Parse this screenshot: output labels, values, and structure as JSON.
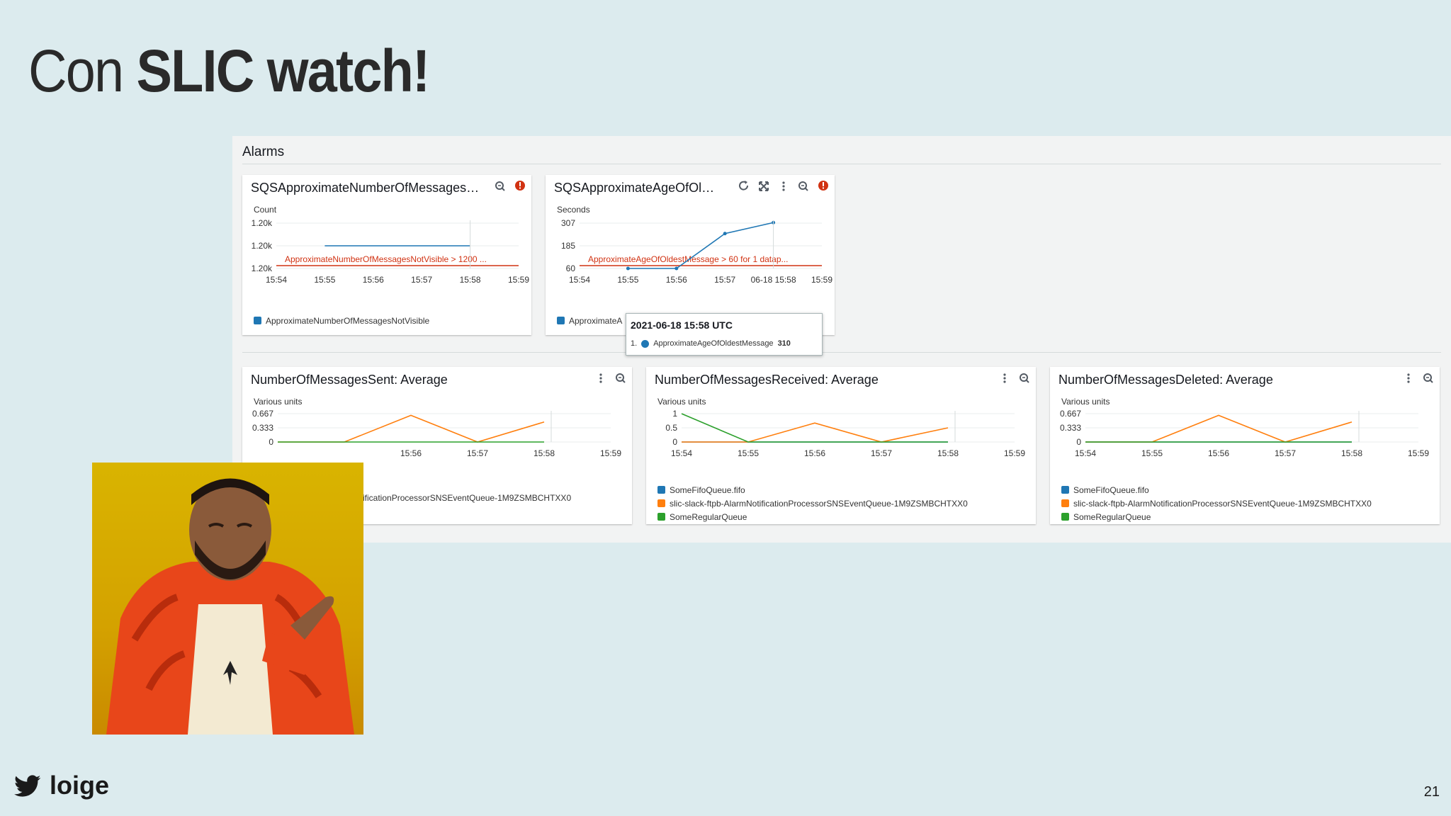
{
  "slide": {
    "title_prefix": "Con ",
    "title_bold": "SLIC watch!",
    "handle": "loige",
    "page_number": "21"
  },
  "dashboard": {
    "section_title": "Alarms",
    "widgets": [
      {
        "title": "SQSApproximateNumberOfMessages…",
        "unit": "Count",
        "y_ticks": [
          "1.20k",
          "1.20k",
          "1.20k"
        ],
        "x_ticks": [
          "15:54",
          "15:55",
          "15:56",
          "15:57",
          "15:58",
          "15:59"
        ],
        "threshold_label": "ApproximateNumberOfMessagesNotVisible > 1200 ...",
        "legend": [
          {
            "name": "ApproximateNumberOfMessagesNotVisible",
            "color": "#1f77b4"
          }
        ]
      },
      {
        "title": "SQSApproximateAgeOfOl…",
        "unit": "Seconds",
        "y_ticks": [
          "307",
          "185",
          "60"
        ],
        "x_ticks": [
          "15:54",
          "15:55",
          "15:56",
          "15:57",
          "06-18 15:58",
          "15:59"
        ],
        "threshold_label": "ApproximateAgeOfOldestMessage > 60 for 1 datap...",
        "legend": [
          {
            "name": "ApproximateA",
            "color": "#1f77b4"
          }
        ]
      },
      {
        "title": "NumberOfMessagesSent: Average",
        "unit": "Various units",
        "y_ticks": [
          "0.667",
          "0.333",
          "0"
        ],
        "x_ticks": [
          "15:56",
          "15:57",
          "15:58",
          "15:59"
        ],
        "legend": [
          {
            "name": "ificationProcessorSNSEventQueue-1M9ZSMBCHTXX0",
            "color": "#ff7f0e"
          }
        ]
      },
      {
        "title": "NumberOfMessagesReceived: Average",
        "unit": "Various units",
        "y_ticks": [
          "1",
          "0.5",
          "0"
        ],
        "x_ticks": [
          "15:54",
          "15:55",
          "15:56",
          "15:57",
          "15:58",
          "15:59"
        ],
        "legend": [
          {
            "name": "SomeFifoQueue.fifo",
            "color": "#1f77b4"
          },
          {
            "name": "slic-slack-ftpb-AlarmNotificationProcessorSNSEventQueue-1M9ZSMBCHTXX0",
            "color": "#ff7f0e"
          },
          {
            "name": "SomeRegularQueue",
            "color": "#2ca02c"
          }
        ]
      },
      {
        "title": "NumberOfMessagesDeleted: Average",
        "unit": "Various units",
        "y_ticks": [
          "0.667",
          "0.333",
          "0"
        ],
        "x_ticks": [
          "15:54",
          "15:55",
          "15:56",
          "15:57",
          "15:58",
          "15:59"
        ],
        "legend": [
          {
            "name": "SomeFifoQueue.fifo",
            "color": "#1f77b4"
          },
          {
            "name": "slic-slack-ftpb-AlarmNotificationProcessorSNSEventQueue-1M9ZSMBCHTXX0",
            "color": "#ff7f0e"
          },
          {
            "name": "SomeRegularQueue",
            "color": "#2ca02c"
          }
        ]
      }
    ],
    "tooltip": {
      "title": "2021-06-18 15:58 UTC",
      "index": "1.",
      "series": "ApproximateAgeOfOldestMessage",
      "value": "310"
    }
  },
  "chart_data": [
    {
      "type": "line",
      "x": [
        "15:54",
        "15:55",
        "15:56",
        "15:57",
        "15:58",
        "15:59"
      ],
      "threshold": 1200,
      "series": [
        {
          "name": "ApproximateNumberOfMessagesNotVisible",
          "color": "#1f77b4",
          "x": [
            "15:55",
            "15:58"
          ],
          "values": [
            1200,
            1200
          ]
        }
      ]
    },
    {
      "type": "line",
      "x": [
        "15:54",
        "15:55",
        "15:56",
        "15:57",
        "15:58",
        "15:59"
      ],
      "threshold": 60,
      "ylim": [
        60,
        307
      ],
      "series": [
        {
          "name": "ApproximateAgeOfOldestMessage",
          "color": "#1f77b4",
          "x": [
            "15:55",
            "15:56",
            "15:57",
            "15:58"
          ],
          "values": [
            60,
            60,
            250,
            310
          ]
        }
      ]
    },
    {
      "type": "line",
      "x": [
        "15:54",
        "15:55",
        "15:56",
        "15:57",
        "15:58",
        "15:59"
      ],
      "ylim": [
        0,
        0.85
      ],
      "series": [
        {
          "name": "slic-slack-ftpb-AlarmNotificationProcessorSNSEventQueue-1M9ZSMBCHTXX0",
          "color": "#ff7f0e",
          "values": [
            0,
            0,
            0.8,
            0,
            0.6,
            null
          ]
        },
        {
          "name": "SomeRegularQueue",
          "color": "#2ca02c",
          "values": [
            0,
            0,
            0,
            0,
            0,
            null
          ]
        }
      ]
    },
    {
      "type": "line",
      "x": [
        "15:54",
        "15:55",
        "15:56",
        "15:57",
        "15:58",
        "15:59"
      ],
      "ylim": [
        0,
        1
      ],
      "series": [
        {
          "name": "SomeFifoQueue.fifo",
          "color": "#1f77b4",
          "values": [
            0,
            0,
            0,
            0,
            0,
            null
          ]
        },
        {
          "name": "slic-slack-ftpb-AlarmNotificationProcessorSNSEventQueue-1M9ZSMBCHTXX0",
          "color": "#ff7f0e",
          "values": [
            0,
            0,
            0.67,
            0,
            0.5,
            null
          ]
        },
        {
          "name": "SomeRegularQueue",
          "color": "#2ca02c",
          "values": [
            1,
            0,
            0,
            0,
            0,
            null
          ]
        }
      ]
    },
    {
      "type": "line",
      "x": [
        "15:54",
        "15:55",
        "15:56",
        "15:57",
        "15:58",
        "15:59"
      ],
      "ylim": [
        0,
        0.85
      ],
      "series": [
        {
          "name": "SomeFifoQueue.fifo",
          "color": "#1f77b4",
          "values": [
            0,
            0,
            0,
            0,
            0,
            null
          ]
        },
        {
          "name": "slic-slack-ftpb-AlarmNotificationProcessorSNSEventQueue-1M9ZSMBCHTXX0",
          "color": "#ff7f0e",
          "values": [
            0,
            0,
            0.8,
            0,
            0.6,
            null
          ]
        },
        {
          "name": "SomeRegularQueue",
          "color": "#2ca02c",
          "values": [
            0,
            0,
            0,
            0,
            0,
            null
          ]
        }
      ]
    }
  ]
}
